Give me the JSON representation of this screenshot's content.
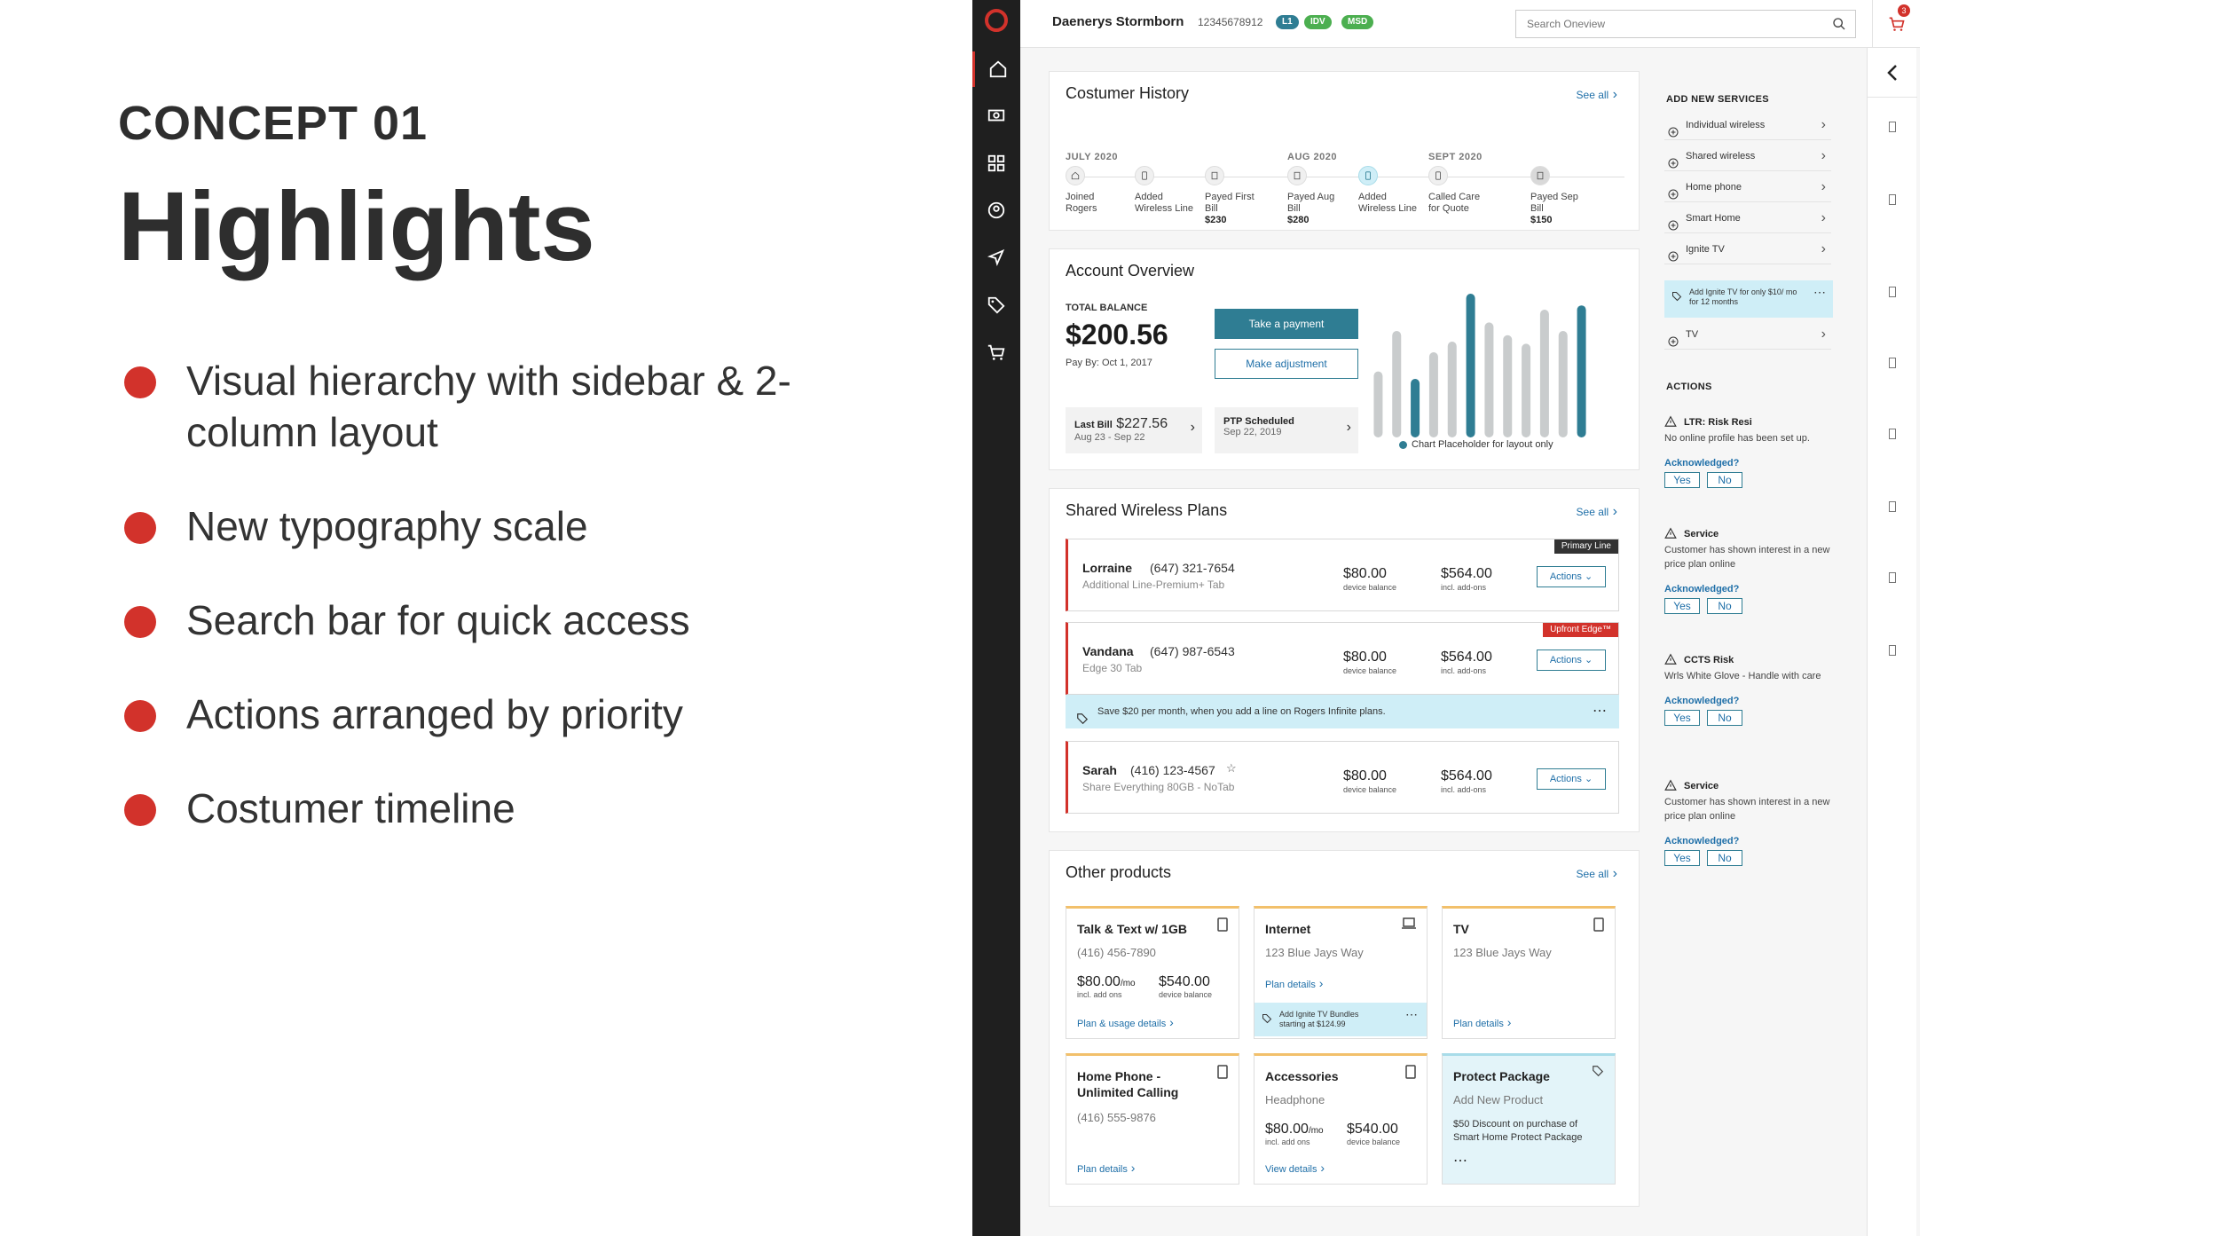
{
  "slide": {
    "concept": "CONCEPT 01",
    "headline": "Highlights",
    "bullets": [
      "Visual hierarchy with sidebar & 2-column layout",
      "New typography scale",
      "Search bar for quick access",
      "Actions arranged by priority",
      "Costumer timeline"
    ],
    "bullet_color": "#d2322b"
  },
  "header": {
    "customer_name": "Daenerys Stormborn",
    "customer_id": "12345678912",
    "badges": [
      {
        "label": "L1",
        "color": "#2f7d93"
      },
      {
        "label": "IDV",
        "color": "#4caf50"
      },
      {
        "label": "MSD",
        "color": "#4caf50"
      }
    ],
    "search_placeholder": "Search Oneview",
    "cart_count": "3"
  },
  "history": {
    "title": "Costumer History",
    "see_all": "See all",
    "months": [
      "JULY 2020",
      "AUG 2020",
      "SEPT 2020"
    ],
    "events": [
      {
        "label": "Joined Rogers",
        "amount": ""
      },
      {
        "label": "Added Wireless Line",
        "amount": ""
      },
      {
        "label": "Payed First Bill",
        "amount": "$230"
      },
      {
        "label": "Payed Aug Bill",
        "amount": "$280"
      },
      {
        "label": "Added Wireless Line",
        "amount": ""
      },
      {
        "label": "Called Care for Quote",
        "amount": ""
      },
      {
        "label": "Payed Sep Bill",
        "amount": "$150"
      }
    ]
  },
  "account": {
    "title": "Account Overview",
    "total_balance_label": "TOTAL BALANCE",
    "total_balance": "$200.56",
    "pay_by": "Pay By: Oct 1, 2017",
    "take_payment": "Take a payment",
    "make_adjustment": "Make adjustment",
    "last_bill_label": "Last Bill",
    "last_bill_amount": "$227.56",
    "last_bill_period": "Aug 23 - Sep 22",
    "ptp_label": "PTP Scheduled",
    "ptp_date": "Sep 22, 2019",
    "chart_legend": "Chart Placeholder for layout only"
  },
  "chart_data": {
    "type": "bar",
    "categories": [
      "1",
      "2",
      "3",
      "4",
      "5",
      "6",
      "7",
      "8",
      "9",
      "10",
      "11",
      "12"
    ],
    "values": [
      62,
      100,
      55,
      80,
      90,
      135,
      108,
      96,
      88,
      120,
      100,
      124
    ],
    "highlight": [
      false,
      false,
      true,
      false,
      false,
      true,
      false,
      false,
      false,
      false,
      false,
      true
    ],
    "ylim": [
      0,
      140
    ],
    "colors": {
      "base": "#c9cccd",
      "highlight": "#2f7d93"
    }
  },
  "plans": {
    "title": "Shared Wireless Plans",
    "see_all": "See all",
    "actions_label": "Actions",
    "items": [
      {
        "name": "Lorraine",
        "phone": "(647) 321-7654",
        "desc": "Additional Line-Premium+ Tab",
        "device_balance": "$80.00",
        "device_balance_label": "device balance",
        "addons": "$564.00",
        "addons_label": "incl. add-ons",
        "tag": "Primary Line",
        "tag_color": "#333333"
      },
      {
        "name": "Vandana",
        "phone": "(647) 987-6543",
        "desc": "Edge 30 Tab",
        "device_balance": "$80.00",
        "device_balance_label": "device balance",
        "addons": "$564.00",
        "addons_label": "incl. add-ons",
        "tag": "Upfront Edge™",
        "tag_color": "#d2322b"
      },
      {
        "name": "Sarah",
        "phone": "(416) 123-4567",
        "desc": "Share Everything 80GB - NoTab",
        "device_balance": "$80.00",
        "device_balance_label": "device balance",
        "addons": "$564.00",
        "addons_label": "incl. add-ons",
        "tag": "",
        "tag_color": ""
      }
    ],
    "promo": "Save $20 per month, when you add a line on Rogers Infinite plans."
  },
  "products": {
    "title": "Other products",
    "see_all": "See all",
    "talk": {
      "title": "Talk & Text w/ 1GB",
      "sub": "(416) 456-7890",
      "amt1": "$80.00",
      "amt1_unit": "/mo",
      "amt1_label": "incl. add ons",
      "amt2": "$540.00",
      "amt2_label": "device balance",
      "link": "Plan & usage details"
    },
    "internet": {
      "title": "Internet",
      "sub": "123 Blue Jays Way",
      "link": "Plan details",
      "promo": "Add Ignite TV Bundles starting at $124.99"
    },
    "tv": {
      "title": "TV",
      "sub": "123 Blue Jays Way",
      "link": "Plan details"
    },
    "home_phone": {
      "title_line1": "Home Phone -",
      "title_line2": "Unlimited Calling",
      "sub": "(416) 555-9876",
      "link": "Plan details"
    },
    "accessories": {
      "title": "Accessories",
      "sub": "Headphone",
      "amt1": "$80.00",
      "amt1_unit": "/mo",
      "amt1_label": "incl. add ons",
      "amt2": "$540.00",
      "amt2_label": "device balance",
      "link": "View details"
    },
    "protect": {
      "title": "Protect Package",
      "sub": "Add New Product",
      "desc": "$50 Discount on purchase of Smart Home Protect Package"
    }
  },
  "services": {
    "title": "ADD NEW SERVICES",
    "items": [
      "Individual wireless",
      "Shared wireless",
      "Home phone",
      "Smart Home",
      "Ignite TV"
    ],
    "promo": "Add Ignite TV for only $10/ mo for 12 months",
    "last_item": "TV"
  },
  "actions": {
    "title": "ACTIONS",
    "acknowledged": "Acknowledged?",
    "yes": "Yes",
    "no": "No",
    "items": [
      {
        "title": "LTR: Risk Resi",
        "desc": "No online profile has been set up."
      },
      {
        "title": "Service",
        "desc": "Customer has shown interest in a new price plan online"
      },
      {
        "title": "CCTS Risk",
        "desc": "Wrls White Glove - Handle with care"
      },
      {
        "title": "Service",
        "desc": "Customer has shown interest in a new price plan online"
      }
    ]
  }
}
